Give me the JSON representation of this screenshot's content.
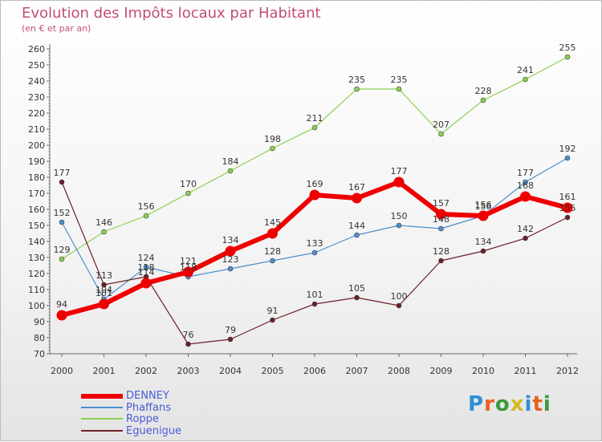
{
  "title": "Evolution des Impôts locaux par Habitant",
  "subtitle": "(en € et par an)",
  "logo_text": "Proxiti",
  "chart_data": {
    "type": "line",
    "title": "Evolution des Impôts locaux par Habitant",
    "subtitle": "(en € et par an)",
    "xlabel": "",
    "ylabel": "",
    "x": [
      "2000",
      "2001",
      "2002",
      "2003",
      "2004",
      "2005",
      "2006",
      "2007",
      "2008",
      "2009",
      "2010",
      "2011",
      "2012"
    ],
    "ylim": [
      70,
      260
    ],
    "yticks": [
      70,
      80,
      90,
      100,
      110,
      120,
      130,
      140,
      150,
      160,
      170,
      180,
      190,
      200,
      210,
      220,
      230,
      240,
      250,
      260
    ],
    "grid": false,
    "legend_position": "bottom-left",
    "series": [
      {
        "name": "DENNEY",
        "color": "#ee0000",
        "values": [
          94,
          101,
          114,
          121,
          134,
          145,
          169,
          167,
          177,
          157,
          156,
          168,
          161
        ]
      },
      {
        "name": "Phaffans",
        "color": "#4b8fce",
        "values": [
          152,
          104,
          124,
          118,
          123,
          128,
          133,
          144,
          150,
          148,
          156,
          177,
          192
        ]
      },
      {
        "name": "Roppe",
        "color": "#8bd14f",
        "values": [
          129,
          146,
          156,
          170,
          184,
          198,
          211,
          235,
          235,
          207,
          228,
          241,
          255
        ]
      },
      {
        "name": "Eguenigue",
        "color": "#6d1f28",
        "values": [
          177,
          113,
          118,
          76,
          79,
          91,
          101,
          105,
          100,
          128,
          134,
          142,
          155
        ]
      }
    ]
  }
}
